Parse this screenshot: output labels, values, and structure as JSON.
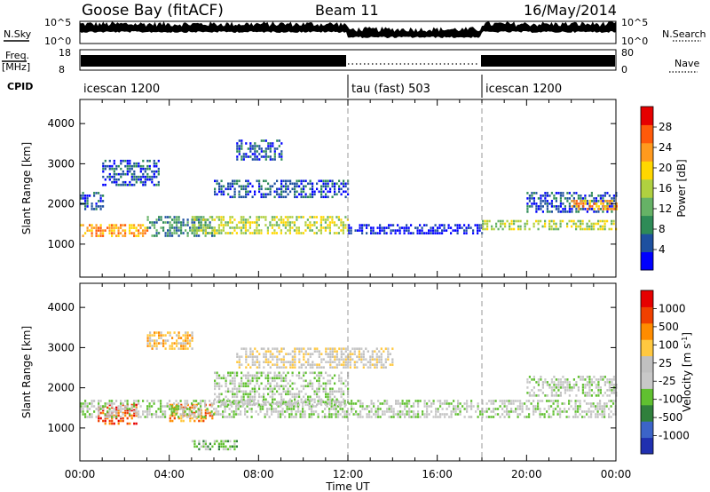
{
  "header": {
    "station": "Goose Bay (fitACF)",
    "beam": "Beam 11",
    "date": "16/May/2014"
  },
  "top_panels": {
    "nsky_label": "N.Sky",
    "nsky_ticks": [
      "10^5",
      "10^0"
    ],
    "nsearch_label": "N.Search",
    "nsearch_ticks": [
      "10^5",
      "10^0"
    ],
    "freq_label": "Freq.",
    "freq_unit": "[MHz]",
    "freq_ticks": [
      "18",
      "8"
    ],
    "nave_label": "Nave",
    "nave_ticks": [
      "80",
      "0"
    ],
    "cpid_label": "CPID"
  },
  "cpid_segments": [
    {
      "label": "icescan 1200",
      "start_hour": 0,
      "end_hour": 12
    },
    {
      "label": "tau (fast) 503",
      "start_hour": 12,
      "end_hour": 18
    },
    {
      "label": "icescan 1200",
      "start_hour": 18,
      "end_hour": 24
    }
  ],
  "colors": {
    "power": [
      "#0000ff",
      "#1e50a0",
      "#2e8b57",
      "#66b266",
      "#b0d040",
      "#ffd700",
      "#ff9a1e",
      "#ff5a0a",
      "#e60000"
    ],
    "velocity": [
      "#2030b0",
      "#3c64c8",
      "#30803c",
      "#60c030",
      "#c8c8c8",
      "#c0c0c0",
      "#ffc840",
      "#ff8c00",
      "#f04000",
      "#e60000"
    ]
  },
  "chart_data": [
    {
      "type": "heatmap",
      "name": "power",
      "ylabel": "Slant Range [km]",
      "xlabel": "Time UT",
      "xlim": [
        0,
        24
      ],
      "ylim": [
        180,
        4600
      ],
      "yticks": [
        "1000",
        "2000",
        "3000",
        "4000"
      ],
      "colorbar_label": "Power [dB]",
      "colorbar_ticks": [
        "4",
        "8",
        "12",
        "16",
        "20",
        "24",
        "28"
      ],
      "regions": [
        {
          "t": [
            0,
            3
          ],
          "r": [
            1200,
            1500
          ],
          "level": 6
        },
        {
          "t": [
            0,
            1
          ],
          "r": [
            1900,
            2300
          ],
          "level": 1
        },
        {
          "t": [
            1,
            3.5
          ],
          "r": [
            2500,
            3100
          ],
          "level": 1
        },
        {
          "t": [
            3,
            6
          ],
          "r": [
            1200,
            1700
          ],
          "level": 2
        },
        {
          "t": [
            5,
            12
          ],
          "r": [
            1300,
            1700
          ],
          "level": 4
        },
        {
          "t": [
            6,
            12
          ],
          "r": [
            2200,
            2600
          ],
          "level": 1
        },
        {
          "t": [
            7,
            9
          ],
          "r": [
            3100,
            3600
          ],
          "level": 1
        },
        {
          "t": [
            12,
            18
          ],
          "r": [
            1300,
            1500
          ],
          "level": 0
        },
        {
          "t": [
            18,
            24
          ],
          "r": [
            1400,
            1600
          ],
          "level": 4
        },
        {
          "t": [
            20,
            24
          ],
          "r": [
            1800,
            2300
          ],
          "level": 1
        },
        {
          "t": [
            22,
            24
          ],
          "r": [
            1900,
            2100
          ],
          "level": 6
        }
      ]
    },
    {
      "type": "heatmap",
      "name": "velocity",
      "ylabel": "Slant Range [km]",
      "xlabel": "Time UT",
      "xlim": [
        0,
        24
      ],
      "ylim": [
        180,
        4600
      ],
      "yticks": [
        "1000",
        "2000",
        "3000",
        "4000"
      ],
      "xticks": [
        "00:00",
        "04:00",
        "08:00",
        "12:00",
        "16:00",
        "20:00",
        "00:00"
      ],
      "colorbar_label": "Velocity [m s",
      "colorbar_label_sup": "-1",
      "colorbar_label_end": "]",
      "colorbar_ticks": [
        "1000",
        "500",
        "100",
        "25",
        "-25",
        "-100",
        "-500",
        "-1000"
      ],
      "regions": [
        {
          "t": [
            0.8,
            2.5
          ],
          "r": [
            1100,
            1600
          ],
          "level": 8
        },
        {
          "t": [
            4,
            6
          ],
          "r": [
            1200,
            1600
          ],
          "level": 7
        },
        {
          "t": [
            3,
            5
          ],
          "r": [
            3000,
            3400
          ],
          "level": 6
        },
        {
          "t": [
            0,
            24
          ],
          "r": [
            1300,
            1700
          ],
          "level": 4
        },
        {
          "t": [
            6,
            12
          ],
          "r": [
            1600,
            2400
          ],
          "level": 4
        },
        {
          "t": [
            7,
            14
          ],
          "r": [
            2500,
            3000
          ],
          "level": 5
        },
        {
          "t": [
            20,
            24
          ],
          "r": [
            1800,
            2300
          ],
          "level": 4
        },
        {
          "t": [
            5,
            7
          ],
          "r": [
            500,
            700
          ],
          "level": 3
        }
      ]
    }
  ]
}
